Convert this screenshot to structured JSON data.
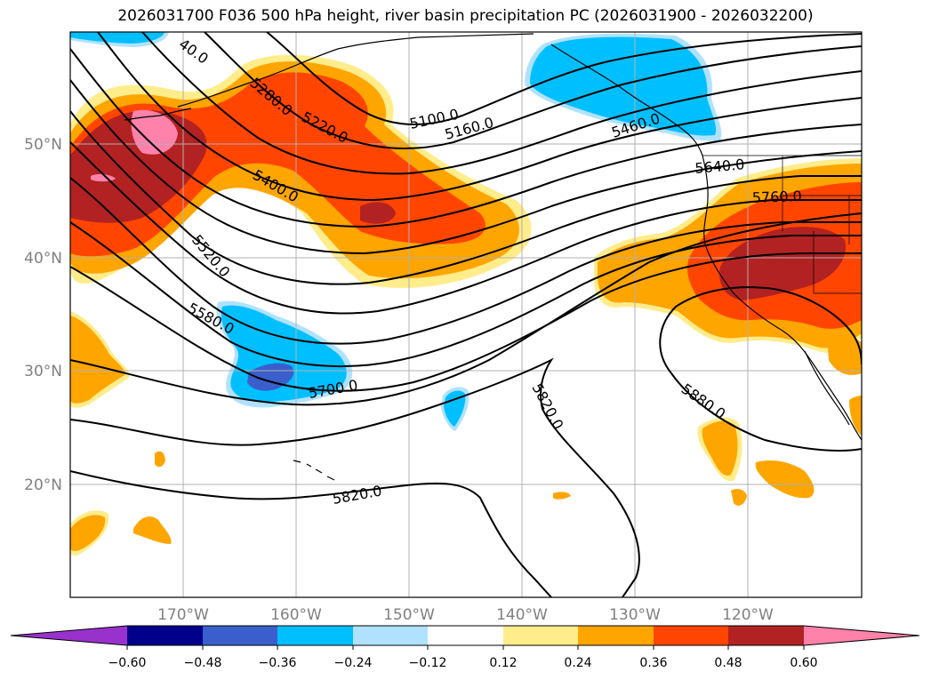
{
  "title": "2026031700 F036 500 hPa height, river basin precipitation PC (2026031900 - 2026032200)",
  "latitude_labels": [
    "50°N",
    "40°N",
    "30°N",
    "20°N"
  ],
  "longitude_labels": [
    "170°W",
    "160°W",
    "150°W",
    "140°W",
    "130°W",
    "120°W"
  ],
  "contour_labels": [
    "40.0",
    "5280.0",
    "5220.0",
    "5100.0",
    "5160.0",
    "5460.0",
    "5640.0",
    "5760.0",
    "5400.0",
    "5520.0",
    "5580.0",
    "5700.0",
    "5820.0",
    "5820.0",
    "5880.0"
  ],
  "colorbar": {
    "ticks": [
      "−0.60",
      "−0.48",
      "−0.36",
      "−0.24",
      "−0.12",
      "0.12",
      "0.24",
      "0.36",
      "0.48",
      "0.60"
    ],
    "colors": [
      "#9932cc",
      "#00008b",
      "#3a5fcd",
      "#00bfff",
      "#b0e2ff",
      "#ffffff",
      "#ffec8b",
      "#ffa500",
      "#ff4500",
      "#b22222",
      "#ff82ab",
      "#ff82ab"
    ]
  },
  "fill_colors": {
    "orange": "#ffa500",
    "red_orange": "#ff4500",
    "dark_red": "#b22222",
    "pink": "#ff82ab",
    "yellow": "#ffec8b",
    "sky_blue": "#00bfff",
    "light_blue": "#b0e2ff",
    "royal_blue": "#3a5fcd"
  }
}
